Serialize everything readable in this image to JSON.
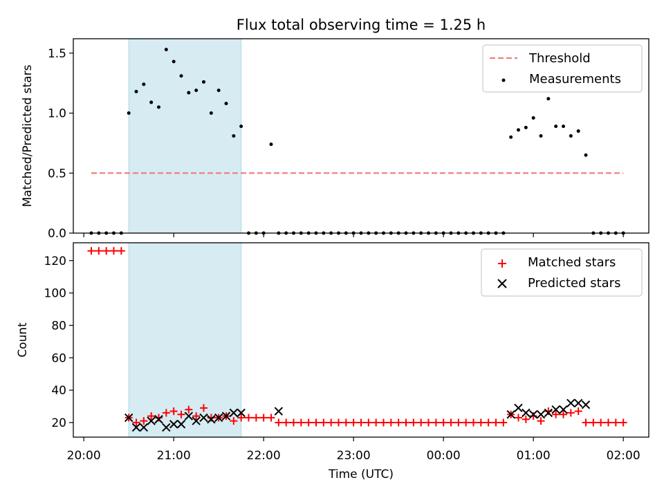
{
  "chart_data": [
    {
      "type": "scatter",
      "title": "Flux total observing time = 1.25 h",
      "xlabel": "",
      "ylabel": "Matched/Predicted stars",
      "ylim": [
        0,
        1.62
      ],
      "yticks": [
        0.0,
        0.5,
        1.0,
        1.5
      ],
      "ytick_labels": [
        "0.0",
        "0.5",
        "1.0",
        "1.5"
      ],
      "shaded_region": {
        "start": "20:30",
        "end": "21:45",
        "color": "#add8e6"
      },
      "legend_position": "top-right",
      "threshold": {
        "name": "Threshold",
        "value": 0.5,
        "x_start": "20:05",
        "x_end": "02:00",
        "color": "#f08080"
      },
      "series": [
        {
          "name": "Measurements",
          "color": "#000000",
          "x": [
            "20:05",
            "20:10",
            "20:15",
            "20:20",
            "20:25",
            "20:30",
            "20:35",
            "20:40",
            "20:45",
            "20:50",
            "20:55",
            "21:00",
            "21:05",
            "21:10",
            "21:15",
            "21:20",
            "21:25",
            "21:30",
            "21:35",
            "21:40",
            "21:45",
            "21:50",
            "21:55",
            "22:00",
            "22:05",
            "22:10",
            "22:15",
            "22:20",
            "22:25",
            "22:30",
            "22:35",
            "22:40",
            "22:45",
            "22:50",
            "22:55",
            "23:00",
            "23:05",
            "23:10",
            "23:15",
            "23:20",
            "23:25",
            "23:30",
            "23:35",
            "23:40",
            "23:45",
            "23:50",
            "23:55",
            "00:00",
            "00:05",
            "00:10",
            "00:15",
            "00:20",
            "00:25",
            "00:30",
            "00:35",
            "00:40",
            "00:45",
            "00:50",
            "00:55",
            "01:00",
            "01:05",
            "01:10",
            "01:15",
            "01:20",
            "01:25",
            "01:30",
            "01:35",
            "01:40",
            "01:45",
            "01:50",
            "01:55",
            "02:00"
          ],
          "values": [
            0,
            0,
            0,
            0,
            0,
            1.0,
            1.18,
            1.24,
            1.09,
            1.05,
            1.53,
            1.43,
            1.31,
            1.17,
            1.19,
            1.26,
            1.0,
            1.19,
            1.08,
            0.81,
            0.89,
            0,
            0,
            0,
            0.74,
            0,
            0,
            0,
            0,
            0,
            0,
            0,
            0,
            0,
            0,
            0,
            0,
            0,
            0,
            0,
            0,
            0,
            0,
            0,
            0,
            0,
            0,
            0,
            0,
            0,
            0,
            0,
            0,
            0,
            0,
            0,
            0.8,
            0.86,
            0.88,
            0.96,
            0.81,
            1.12,
            0.89,
            0.89,
            0.81,
            0.85,
            0.65,
            0,
            0,
            0,
            0,
            0
          ]
        }
      ]
    },
    {
      "type": "scatter",
      "title": "",
      "xlabel": "Time (UTC)",
      "ylabel": "Count",
      "ylim": [
        11,
        131
      ],
      "yticks": [
        20,
        40,
        60,
        80,
        100,
        120
      ],
      "ytick_labels": [
        "20",
        "40",
        "60",
        "80",
        "100",
        "120"
      ],
      "xticks": [
        "20:00",
        "21:00",
        "22:00",
        "23:00",
        "00:00",
        "01:00",
        "02:00"
      ],
      "xtick_labels": [
        "20:00",
        "21:00",
        "22:00",
        "23:00",
        "00:00",
        "01:00",
        "02:00"
      ],
      "x_range": [
        "19:53",
        "02:17"
      ],
      "shaded_region": {
        "start": "20:30",
        "end": "21:45",
        "color": "#add8e6"
      },
      "legend_position": "top-right",
      "series": [
        {
          "name": "Matched stars",
          "marker": "+",
          "color": "#ff0000",
          "x": [
            "20:05",
            "20:10",
            "20:15",
            "20:20",
            "20:25",
            "20:30",
            "20:35",
            "20:40",
            "20:45",
            "20:50",
            "20:55",
            "21:00",
            "21:05",
            "21:10",
            "21:15",
            "21:20",
            "21:25",
            "21:30",
            "21:35",
            "21:40",
            "21:45",
            "21:50",
            "21:55",
            "22:00",
            "22:05",
            "22:10",
            "22:15",
            "22:20",
            "22:25",
            "22:30",
            "22:35",
            "22:40",
            "22:45",
            "22:50",
            "22:55",
            "23:00",
            "23:05",
            "23:10",
            "23:15",
            "23:20",
            "23:25",
            "23:30",
            "23:35",
            "23:40",
            "23:45",
            "23:50",
            "23:55",
            "00:00",
            "00:05",
            "00:10",
            "00:15",
            "00:20",
            "00:25",
            "00:30",
            "00:35",
            "00:40",
            "00:45",
            "00:50",
            "00:55",
            "01:00",
            "01:05",
            "01:10",
            "01:15",
            "01:20",
            "01:25",
            "01:30",
            "01:35",
            "01:40",
            "01:45",
            "01:50",
            "01:55",
            "02:00"
          ],
          "values": [
            126,
            126,
            126,
            126,
            126,
            23,
            20,
            21,
            24,
            23,
            26,
            27,
            25,
            28,
            24,
            29,
            23,
            23,
            24,
            21,
            23,
            23,
            23,
            23,
            23,
            20,
            20,
            20,
            20,
            20,
            20,
            20,
            20,
            20,
            20,
            20,
            20,
            20,
            20,
            20,
            20,
            20,
            20,
            20,
            20,
            20,
            20,
            20,
            20,
            20,
            20,
            20,
            20,
            20,
            20,
            20,
            25,
            23,
            22,
            24,
            21,
            27,
            25,
            25,
            26,
            27,
            20,
            20,
            20,
            20,
            20,
            20
          ]
        },
        {
          "name": "Predicted stars",
          "marker": "x",
          "color": "#000000",
          "x": [
            "20:30",
            "20:35",
            "20:40",
            "20:45",
            "20:50",
            "20:55",
            "21:00",
            "21:05",
            "21:10",
            "21:15",
            "21:20",
            "21:25",
            "21:30",
            "21:35",
            "21:40",
            "21:45",
            "22:10",
            "00:45",
            "00:50",
            "00:55",
            "01:00",
            "01:05",
            "01:10",
            "01:15",
            "01:20",
            "01:25",
            "01:30",
            "01:35"
          ],
          "values": [
            23,
            17,
            17,
            21,
            22,
            17,
            19,
            19,
            24,
            21,
            23,
            22,
            23,
            24,
            26,
            26,
            27,
            25,
            29,
            26,
            25,
            25,
            26,
            28,
            28,
            32,
            32,
            31
          ]
        }
      ]
    }
  ]
}
